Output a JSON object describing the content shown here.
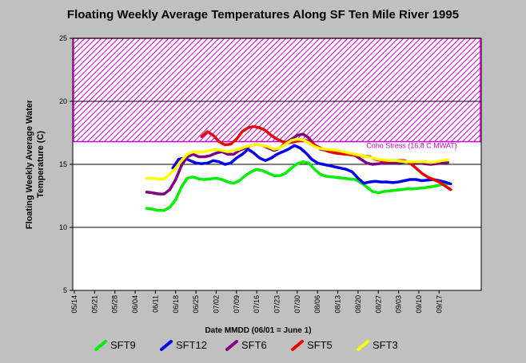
{
  "chart_data": {
    "type": "line",
    "title": "Floating Weekly Average Temperatures Along SF Ten Mile River 1995",
    "xlabel": "Date MMDD (06/01 = June 1)",
    "ylabel_lines": [
      "Floating Weekly Average Water",
      "Temperature (C)"
    ],
    "x_axis": {
      "start_day": 0,
      "end_day": 140,
      "tick_labels": [
        "05/14",
        "05/21",
        "05/28",
        "06/04",
        "06/11",
        "06/18",
        "06/25",
        "07/02",
        "07/09",
        "07/16",
        "07/23",
        "07/30",
        "08/06",
        "08/13",
        "08/20",
        "08/27",
        "09/03",
        "09/10",
        "09/17"
      ],
      "tick_days": [
        0,
        7,
        14,
        21,
        28,
        35,
        42,
        49,
        56,
        63,
        70,
        77,
        84,
        91,
        98,
        105,
        112,
        119,
        126
      ]
    },
    "y_axis": {
      "ylim": [
        5,
        25
      ],
      "ticks": [
        5,
        10,
        15,
        20,
        25
      ],
      "gridlines": [
        10,
        15,
        20,
        25
      ]
    },
    "band": {
      "from": 16.8,
      "to": 25,
      "color": "#cc00cc",
      "label": "Coho Stress (16.8 C MWAT)"
    },
    "series": [
      {
        "name": "SFT9",
        "color": "#00ee00",
        "points": [
          [
            25,
            11.5
          ],
          [
            27,
            11.45
          ],
          [
            29,
            11.35
          ],
          [
            31,
            11.35
          ],
          [
            33,
            11.6
          ],
          [
            35,
            12.2
          ],
          [
            37,
            13.2
          ],
          [
            39,
            13.9
          ],
          [
            41,
            14.0
          ],
          [
            43,
            13.85
          ],
          [
            45,
            13.8
          ],
          [
            47,
            13.85
          ],
          [
            49,
            13.9
          ],
          [
            51,
            13.8
          ],
          [
            53,
            13.6
          ],
          [
            55,
            13.5
          ],
          [
            57,
            13.7
          ],
          [
            59,
            14.1
          ],
          [
            61,
            14.4
          ],
          [
            63,
            14.6
          ],
          [
            65,
            14.5
          ],
          [
            67,
            14.3
          ],
          [
            69,
            14.1
          ],
          [
            71,
            14.1
          ],
          [
            73,
            14.3
          ],
          [
            75,
            14.7
          ],
          [
            77,
            15.05
          ],
          [
            79,
            15.2
          ],
          [
            81,
            15.1
          ],
          [
            83,
            14.6
          ],
          [
            85,
            14.2
          ],
          [
            87,
            14.05
          ],
          [
            89,
            14.0
          ],
          [
            91,
            13.95
          ],
          [
            93,
            13.9
          ],
          [
            95,
            13.85
          ],
          [
            97,
            13.8
          ],
          [
            99,
            13.55
          ],
          [
            101,
            13.2
          ],
          [
            103,
            12.85
          ],
          [
            105,
            12.75
          ],
          [
            107,
            12.85
          ],
          [
            109,
            12.9
          ],
          [
            111,
            12.95
          ],
          [
            113,
            13.0
          ],
          [
            115,
            13.05
          ],
          [
            117,
            13.05
          ],
          [
            119,
            13.1
          ],
          [
            121,
            13.15
          ],
          [
            123,
            13.2
          ],
          [
            125,
            13.3
          ],
          [
            127,
            13.4
          ],
          [
            129,
            13.45
          ]
        ]
      },
      {
        "name": "SFT12",
        "color": "#0000ee",
        "points": [
          [
            34,
            14.7
          ],
          [
            36,
            15.4
          ],
          [
            38,
            15.5
          ],
          [
            40,
            15.3
          ],
          [
            42,
            15.1
          ],
          [
            44,
            15.05
          ],
          [
            46,
            15.1
          ],
          [
            48,
            15.3
          ],
          [
            50,
            15.2
          ],
          [
            52,
            15.0
          ],
          [
            54,
            15.1
          ],
          [
            56,
            15.5
          ],
          [
            58,
            15.8
          ],
          [
            60,
            16.2
          ],
          [
            62,
            15.9
          ],
          [
            64,
            15.5
          ],
          [
            66,
            15.3
          ],
          [
            68,
            15.5
          ],
          [
            70,
            15.8
          ],
          [
            72,
            16.0
          ],
          [
            74,
            16.2
          ],
          [
            76,
            16.5
          ],
          [
            78,
            16.3
          ],
          [
            80,
            15.9
          ],
          [
            82,
            15.4
          ],
          [
            84,
            15.1
          ],
          [
            86,
            15.0
          ],
          [
            88,
            14.9
          ],
          [
            90,
            14.8
          ],
          [
            92,
            14.7
          ],
          [
            94,
            14.6
          ],
          [
            96,
            14.4
          ],
          [
            98,
            13.9
          ],
          [
            100,
            13.5
          ],
          [
            102,
            13.6
          ],
          [
            104,
            13.65
          ],
          [
            106,
            13.6
          ],
          [
            108,
            13.6
          ],
          [
            110,
            13.55
          ],
          [
            112,
            13.6
          ],
          [
            114,
            13.7
          ],
          [
            116,
            13.8
          ],
          [
            118,
            13.8
          ],
          [
            120,
            13.7
          ],
          [
            122,
            13.75
          ],
          [
            124,
            13.8
          ],
          [
            126,
            13.7
          ],
          [
            128,
            13.6
          ],
          [
            130,
            13.45
          ]
        ]
      },
      {
        "name": "SFT6",
        "color": "#800080",
        "points": [
          [
            25,
            12.8
          ],
          [
            27,
            12.75
          ],
          [
            29,
            12.65
          ],
          [
            31,
            12.65
          ],
          [
            33,
            13.0
          ],
          [
            35,
            13.8
          ],
          [
            37,
            14.9
          ],
          [
            39,
            15.6
          ],
          [
            41,
            15.8
          ],
          [
            43,
            15.6
          ],
          [
            45,
            15.6
          ],
          [
            47,
            15.7
          ],
          [
            49,
            15.9
          ],
          [
            51,
            16.0
          ],
          [
            53,
            15.8
          ],
          [
            55,
            15.8
          ],
          [
            57,
            16.1
          ],
          [
            59,
            16.3
          ],
          [
            61,
            16.5
          ],
          [
            63,
            16.6
          ],
          [
            65,
            16.5
          ],
          [
            67,
            16.3
          ],
          [
            69,
            16.1
          ],
          [
            71,
            16.3
          ],
          [
            73,
            16.7
          ],
          [
            75,
            17.0
          ],
          [
            77,
            17.3
          ],
          [
            79,
            17.4
          ],
          [
            81,
            17.1
          ],
          [
            83,
            16.5
          ],
          [
            85,
            16.2
          ],
          [
            87,
            16.1
          ],
          [
            89,
            16.0
          ],
          [
            91,
            15.9
          ],
          [
            93,
            15.85
          ],
          [
            95,
            15.8
          ],
          [
            97,
            15.7
          ],
          [
            99,
            15.4
          ],
          [
            101,
            15.1
          ],
          [
            103,
            15.0
          ],
          [
            105,
            15.05
          ],
          [
            107,
            15.1
          ],
          [
            109,
            15.1
          ],
          [
            111,
            15.1
          ],
          [
            113,
            15.15
          ],
          [
            115,
            15.2
          ],
          [
            117,
            15.15
          ],
          [
            119,
            15.1
          ],
          [
            121,
            15.05
          ],
          [
            123,
            15.0
          ],
          [
            125,
            15.05
          ],
          [
            127,
            15.1
          ],
          [
            129,
            15.15
          ]
        ]
      },
      {
        "name": "SFT5",
        "color": "#ee0000",
        "points": [
          [
            44,
            17.2
          ],
          [
            46,
            17.6
          ],
          [
            48,
            17.3
          ],
          [
            50,
            16.8
          ],
          [
            52,
            16.55
          ],
          [
            54,
            16.6
          ],
          [
            56,
            17.0
          ],
          [
            58,
            17.6
          ],
          [
            60,
            17.9
          ],
          [
            62,
            18.0
          ],
          [
            64,
            17.9
          ],
          [
            66,
            17.7
          ],
          [
            68,
            17.3
          ],
          [
            70,
            17.0
          ],
          [
            72,
            16.8
          ],
          [
            74,
            16.7
          ],
          [
            76,
            16.8
          ],
          [
            78,
            16.9
          ],
          [
            80,
            16.9
          ],
          [
            82,
            16.7
          ],
          [
            84,
            16.4
          ],
          [
            86,
            16.2
          ],
          [
            88,
            16.0
          ],
          [
            90,
            15.9
          ],
          [
            92,
            15.85
          ],
          [
            94,
            15.8
          ],
          [
            96,
            15.75
          ],
          [
            98,
            15.7
          ],
          [
            100,
            15.65
          ],
          [
            102,
            15.6
          ],
          [
            104,
            15.4
          ],
          [
            106,
            15.3
          ],
          [
            108,
            15.25
          ],
          [
            110,
            15.3
          ],
          [
            112,
            15.3
          ],
          [
            114,
            15.3
          ],
          [
            116,
            15.1
          ],
          [
            118,
            14.7
          ],
          [
            120,
            14.3
          ],
          [
            122,
            14.0
          ],
          [
            124,
            13.8
          ],
          [
            126,
            13.6
          ],
          [
            128,
            13.3
          ],
          [
            130,
            13.0
          ]
        ]
      },
      {
        "name": "SFT3",
        "color": "#ffff00",
        "points": [
          [
            25,
            13.9
          ],
          [
            27,
            13.9
          ],
          [
            29,
            13.85
          ],
          [
            31,
            13.85
          ],
          [
            33,
            14.2
          ],
          [
            35,
            14.7
          ],
          [
            37,
            15.3
          ],
          [
            39,
            15.8
          ],
          [
            41,
            16.0
          ],
          [
            43,
            15.95
          ],
          [
            45,
            16.0
          ],
          [
            47,
            16.1
          ],
          [
            49,
            16.2
          ],
          [
            51,
            16.1
          ],
          [
            53,
            16.0
          ],
          [
            55,
            16.1
          ],
          [
            57,
            16.2
          ],
          [
            59,
            16.4
          ],
          [
            61,
            16.5
          ],
          [
            63,
            16.6
          ],
          [
            65,
            16.5
          ],
          [
            67,
            16.4
          ],
          [
            69,
            16.2
          ],
          [
            71,
            16.3
          ],
          [
            73,
            16.6
          ],
          [
            75,
            16.9
          ],
          [
            77,
            17.0
          ],
          [
            79,
            16.95
          ],
          [
            81,
            16.7
          ],
          [
            83,
            16.4
          ],
          [
            85,
            16.25
          ],
          [
            87,
            16.2
          ],
          [
            89,
            16.15
          ],
          [
            91,
            16.1
          ],
          [
            93,
            16.0
          ],
          [
            95,
            15.9
          ],
          [
            97,
            15.8
          ],
          [
            99,
            15.7
          ],
          [
            101,
            15.6
          ],
          [
            103,
            15.5
          ],
          [
            105,
            15.4
          ],
          [
            107,
            15.35
          ],
          [
            109,
            15.3
          ],
          [
            111,
            15.3
          ],
          [
            113,
            15.25
          ],
          [
            115,
            15.2
          ],
          [
            117,
            15.2
          ],
          [
            119,
            15.2
          ],
          [
            121,
            15.2
          ],
          [
            123,
            15.15
          ],
          [
            125,
            15.2
          ],
          [
            127,
            15.3
          ],
          [
            129,
            15.35
          ]
        ]
      }
    ]
  }
}
